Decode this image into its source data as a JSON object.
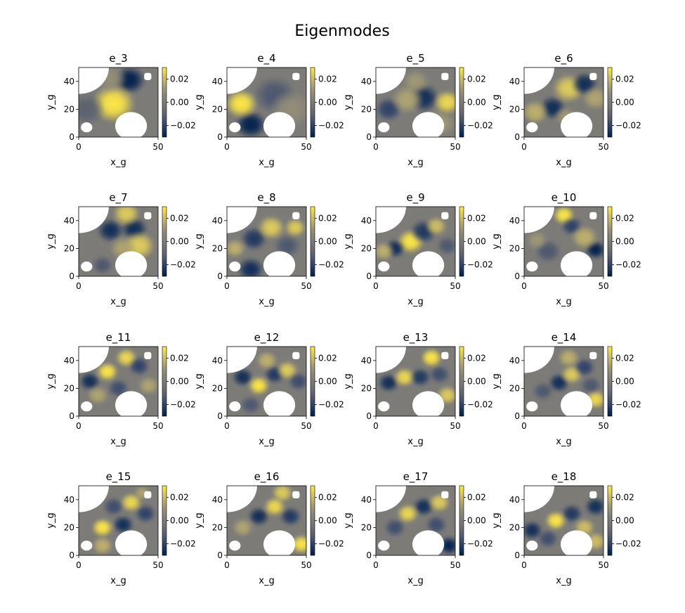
{
  "figure": {
    "suptitle": "Eigenmodes"
  },
  "chart_data": {
    "type": "heatmap",
    "title": "Eigenmodes",
    "colormap": "cividis",
    "colormap_stops": [
      "#00204c",
      "#31446b",
      "#666870",
      "#7c7b78",
      "#958f78",
      "#cbba69",
      "#ffe945"
    ],
    "xlabel": "x_g",
    "ylabel": "y_g",
    "xlim": [
      0,
      50
    ],
    "ylim": [
      0,
      50
    ],
    "xticks": [
      "0",
      "50"
    ],
    "yticks": [
      "0",
      "20",
      "40"
    ],
    "colorbar": {
      "vmin": -0.03,
      "vmax": 0.03,
      "ticks": [
        "0.02",
        "0.00",
        "−0.02"
      ]
    },
    "obstacles": [
      {
        "shape": "quarter-circle",
        "center": [
          0,
          50
        ],
        "radius": 19
      },
      {
        "shape": "circle",
        "center": [
          33,
          8
        ],
        "radius": 10
      },
      {
        "shape": "circle",
        "center": [
          5,
          7
        ],
        "radius": 3.6
      },
      {
        "shape": "rounded-square",
        "center": [
          43.5,
          43.5
        ],
        "size": 4.5
      }
    ],
    "panels": [
      {
        "title": "e_3",
        "blobs": [
          [
            32,
            41,
            -1,
            6
          ],
          [
            22,
            24,
            1,
            8
          ],
          [
            5,
            20,
            -0.4,
            7
          ],
          [
            20,
            42,
            0.3,
            6
          ]
        ]
      },
      {
        "title": "e_4",
        "blobs": [
          [
            15,
            9,
            -1,
            6
          ],
          [
            9,
            24,
            1,
            6
          ],
          [
            30,
            30,
            -0.5,
            8
          ],
          [
            40,
            20,
            0.3,
            8
          ]
        ]
      },
      {
        "title": "e_5",
        "blobs": [
          [
            30,
            28,
            -0.9,
            6
          ],
          [
            45,
            25,
            0.9,
            5
          ],
          [
            8,
            20,
            -0.7,
            5
          ],
          [
            20,
            27,
            0.5,
            6
          ],
          [
            40,
            10,
            0.4,
            6
          ],
          [
            25,
            40,
            0.4,
            5
          ]
        ]
      },
      {
        "title": "e_6",
        "blobs": [
          [
            18,
            21,
            -0.9,
            5
          ],
          [
            28,
            35,
            0.8,
            6
          ],
          [
            38,
            38,
            -0.9,
            5
          ],
          [
            7,
            18,
            0.6,
            5
          ],
          [
            45,
            28,
            0.5,
            5
          ],
          [
            26,
            15,
            0.4,
            4
          ]
        ]
      },
      {
        "title": "e_7",
        "blobs": [
          [
            35,
            34,
            -0.9,
            5
          ],
          [
            20,
            33,
            -0.9,
            5
          ],
          [
            38,
            22,
            0.8,
            6
          ],
          [
            30,
            45,
            0.8,
            5
          ],
          [
            15,
            8,
            -0.5,
            4
          ],
          [
            28,
            20,
            0.5,
            5
          ]
        ]
      },
      {
        "title": "e_8",
        "blobs": [
          [
            15,
            5,
            -0.9,
            5
          ],
          [
            17,
            27,
            -0.8,
            5
          ],
          [
            28,
            35,
            0.8,
            5
          ],
          [
            43,
            35,
            0.8,
            4
          ],
          [
            5,
            20,
            0.6,
            4
          ],
          [
            38,
            22,
            -0.5,
            5
          ]
        ]
      },
      {
        "title": "e_9",
        "blobs": [
          [
            22,
            25,
            1,
            5
          ],
          [
            12,
            20,
            -0.9,
            4
          ],
          [
            30,
            32,
            -0.8,
            5
          ],
          [
            38,
            36,
            0.7,
            4
          ],
          [
            45,
            22,
            -0.5,
            4
          ],
          [
            5,
            18,
            0.6,
            4
          ]
        ]
      },
      {
        "title": "e_10",
        "blobs": [
          [
            45,
            19,
            -1,
            4
          ],
          [
            25,
            44,
            1,
            4
          ],
          [
            30,
            36,
            -0.7,
            4
          ],
          [
            38,
            28,
            0.6,
            5
          ],
          [
            15,
            18,
            -0.5,
            5
          ],
          [
            8,
            26,
            0.4,
            4
          ]
        ]
      },
      {
        "title": "e_11",
        "blobs": [
          [
            18,
            32,
            1,
            4
          ],
          [
            7,
            25,
            -0.9,
            4
          ],
          [
            30,
            42,
            0.9,
            4
          ],
          [
            38,
            36,
            -0.7,
            4
          ],
          [
            25,
            20,
            -0.6,
            4
          ],
          [
            44,
            22,
            0.5,
            4
          ],
          [
            12,
            15,
            0.5,
            4
          ]
        ]
      },
      {
        "title": "e_12",
        "blobs": [
          [
            20,
            22,
            1,
            4
          ],
          [
            10,
            28,
            -0.9,
            4
          ],
          [
            30,
            30,
            -0.8,
            4
          ],
          [
            38,
            33,
            0.8,
            4
          ],
          [
            45,
            25,
            -0.6,
            4
          ],
          [
            25,
            40,
            0.6,
            4
          ],
          [
            15,
            8,
            -0.5,
            4
          ]
        ]
      },
      {
        "title": "e_13",
        "blobs": [
          [
            35,
            42,
            1,
            4
          ],
          [
            8,
            24,
            -0.9,
            4
          ],
          [
            18,
            28,
            0.9,
            4
          ],
          [
            28,
            28,
            -0.8,
            4
          ],
          [
            45,
            15,
            0.8,
            4
          ],
          [
            40,
            30,
            -0.6,
            4
          ]
        ]
      },
      {
        "title": "e_14",
        "blobs": [
          [
            45,
            12,
            0.9,
            4
          ],
          [
            22,
            24,
            -0.9,
            4
          ],
          [
            30,
            30,
            0.8,
            4
          ],
          [
            38,
            35,
            -0.7,
            4
          ],
          [
            12,
            18,
            -0.5,
            4
          ],
          [
            28,
            42,
            0.6,
            4
          ],
          [
            42,
            22,
            -0.5,
            4
          ]
        ]
      },
      {
        "title": "e_15",
        "blobs": [
          [
            15,
            20,
            1,
            4
          ],
          [
            28,
            22,
            -0.9,
            4
          ],
          [
            33,
            38,
            0.9,
            4
          ],
          [
            42,
            30,
            -0.7,
            4
          ],
          [
            22,
            35,
            -0.6,
            4
          ],
          [
            15,
            7,
            0.6,
            4
          ],
          [
            40,
            45,
            0.5,
            3
          ]
        ]
      },
      {
        "title": "e_16",
        "blobs": [
          [
            47,
            8,
            1,
            4
          ],
          [
            20,
            28,
            -0.9,
            4
          ],
          [
            30,
            35,
            0.9,
            4
          ],
          [
            40,
            28,
            -0.8,
            4
          ],
          [
            35,
            45,
            0.8,
            4
          ],
          [
            10,
            20,
            0.5,
            4
          ]
        ]
      },
      {
        "title": "e_17",
        "blobs": [
          [
            46,
            7,
            -1,
            4
          ],
          [
            30,
            35,
            -0.9,
            4
          ],
          [
            20,
            30,
            0.9,
            4
          ],
          [
            40,
            38,
            0.8,
            4
          ],
          [
            12,
            20,
            -0.6,
            4
          ],
          [
            38,
            22,
            -0.6,
            4
          ]
        ]
      },
      {
        "title": "e_18",
        "blobs": [
          [
            20,
            25,
            1,
            4
          ],
          [
            5,
            18,
            -0.9,
            4
          ],
          [
            45,
            35,
            -0.9,
            4
          ],
          [
            30,
            30,
            -0.8,
            4
          ],
          [
            38,
            20,
            0.7,
            4
          ],
          [
            15,
            12,
            -0.6,
            4
          ],
          [
            45,
            10,
            0.7,
            4
          ]
        ]
      }
    ]
  }
}
